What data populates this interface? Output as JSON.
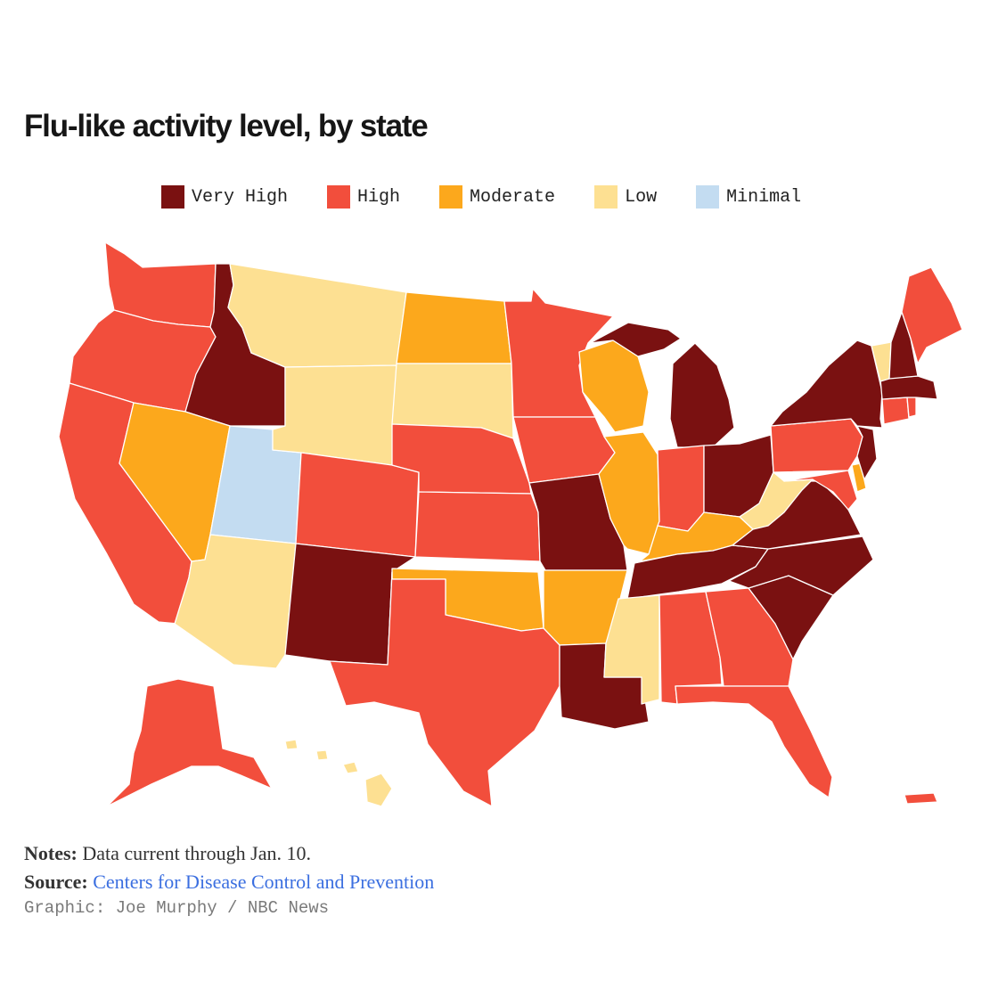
{
  "title": "Flu-like activity level, by state",
  "legend": [
    {
      "label": "Very High",
      "color": "#7a1111"
    },
    {
      "label": "High",
      "color": "#f24e3c"
    },
    {
      "label": "Moderate",
      "color": "#fca81c"
    },
    {
      "label": "Low",
      "color": "#fde092"
    },
    {
      "label": "Minimal",
      "color": "#c3dcf1"
    }
  ],
  "map_data": {
    "type": "choropleth",
    "region": "United States",
    "levels": {
      "WA": "High",
      "OR": "High",
      "CA": "High",
      "ID": "Very High",
      "NV": "Moderate",
      "UT": "Minimal",
      "AZ": "Low",
      "MT": "Low",
      "WY": "Low",
      "CO": "High",
      "NM": "Very High",
      "ND": "Moderate",
      "SD": "Low",
      "NE": "High",
      "KS": "High",
      "OK": "Moderate",
      "TX": "High",
      "MN": "High",
      "IA": "High",
      "MO": "Very High",
      "AR": "Moderate",
      "LA": "Very High",
      "WI": "Moderate",
      "IL": "Moderate",
      "MI": "Very High",
      "IN": "High",
      "OH": "Very High",
      "KY": "Moderate",
      "TN": "Very High",
      "MS": "Low",
      "AL": "High",
      "GA": "High",
      "FL": "High",
      "SC": "Very High",
      "NC": "Very High",
      "VA": "Very High",
      "WV": "Low",
      "PA": "High",
      "NY": "Very High",
      "VT": "Low",
      "NH": "Very High",
      "ME": "High",
      "MA": "Very High",
      "CT": "High",
      "RI": "High",
      "NJ": "Very High",
      "DE": "Moderate",
      "MD": "High",
      "AK": "High",
      "HI": "Low",
      "PR": "High"
    }
  },
  "notes": {
    "label": "Notes:",
    "text": "Data current through Jan. 10."
  },
  "source": {
    "label": "Source:",
    "text": "Centers for Disease Control and Prevention"
  },
  "credit": "Graphic: Joe Murphy / NBC News"
}
